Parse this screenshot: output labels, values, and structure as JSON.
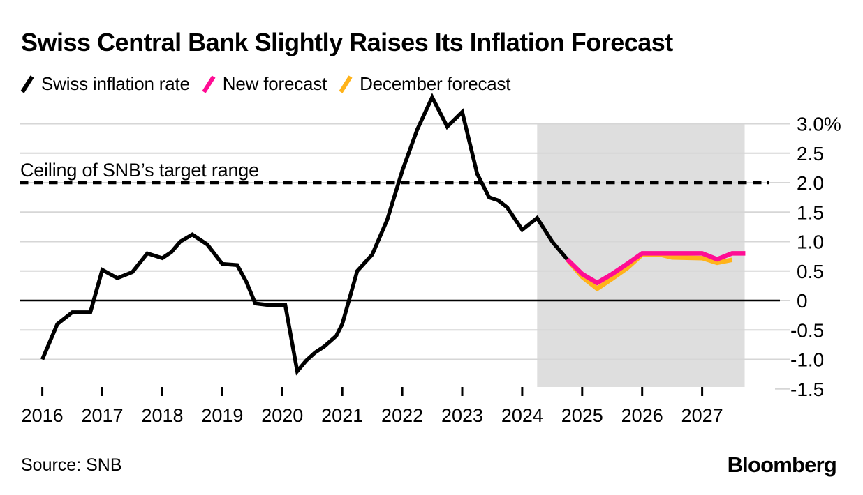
{
  "header": {
    "title": "Swiss Central Bank Slightly Raises Its Inflation Forecast"
  },
  "legend": {
    "items": [
      {
        "label": "Swiss inflation rate",
        "color": "#000000"
      },
      {
        "label": "New forecast",
        "color": "#ff0d94"
      },
      {
        "label": "December forecast",
        "color": "#ffb31a"
      }
    ]
  },
  "footer": {
    "source": "Source: SNB",
    "brand": "Bloomberg"
  },
  "chart_data": {
    "type": "line",
    "title": "Swiss Central Bank Slightly Raises Its Inflation Forecast",
    "x_axis": {
      "range": [
        2015.62,
        2028.46
      ],
      "ticks": [
        "2016",
        "2017",
        "2018",
        "2019",
        "2020",
        "2021",
        "2022",
        "2023",
        "2024",
        "2025",
        "2026",
        "2027"
      ]
    },
    "y_axis": {
      "unit": "%",
      "range": [
        -1.5,
        3.0
      ],
      "ticks": [
        {
          "v": 3.0,
          "label": "3.0%"
        },
        {
          "v": 2.5,
          "label": "2.5"
        },
        {
          "v": 2.0,
          "label": "2.0"
        },
        {
          "v": 1.5,
          "label": "1.5"
        },
        {
          "v": 1.0,
          "label": "1.0"
        },
        {
          "v": 0.5,
          "label": "0.5"
        },
        {
          "v": 0.0,
          "label": "0",
          "zero": true
        },
        {
          "v": -0.5,
          "label": "-0.5"
        },
        {
          "v": -1.0,
          "label": "-1.0"
        },
        {
          "v": -1.5,
          "label": "-1.5",
          "stub": true
        }
      ]
    },
    "target_line": {
      "value": 2.0,
      "label": "Ceiling of SNB’s target range",
      "style": "dashed"
    },
    "forecast_region": {
      "from": 2024.25,
      "to": 2027.71,
      "color": "#dedede"
    },
    "series": [
      {
        "name": "Swiss inflation rate",
        "color": "#000000",
        "width": 5.5,
        "points": [
          [
            2016.0,
            -1.0
          ],
          [
            2016.25,
            -0.4
          ],
          [
            2016.5,
            -0.2
          ],
          [
            2016.8,
            -0.2
          ],
          [
            2017.0,
            0.52
          ],
          [
            2017.25,
            0.38
          ],
          [
            2017.5,
            0.48
          ],
          [
            2017.75,
            0.8
          ],
          [
            2018.0,
            0.72
          ],
          [
            2018.15,
            0.82
          ],
          [
            2018.3,
            1.0
          ],
          [
            2018.5,
            1.12
          ],
          [
            2018.75,
            0.95
          ],
          [
            2019.0,
            0.62
          ],
          [
            2019.25,
            0.6
          ],
          [
            2019.4,
            0.32
          ],
          [
            2019.55,
            -0.05
          ],
          [
            2019.8,
            -0.08
          ],
          [
            2020.05,
            -0.08
          ],
          [
            2020.25,
            -1.2
          ],
          [
            2020.4,
            -1.02
          ],
          [
            2020.55,
            -0.88
          ],
          [
            2020.7,
            -0.78
          ],
          [
            2020.9,
            -0.6
          ],
          [
            2021.0,
            -0.4
          ],
          [
            2021.25,
            0.5
          ],
          [
            2021.5,
            0.78
          ],
          [
            2021.75,
            1.37
          ],
          [
            2022.0,
            2.2
          ],
          [
            2022.25,
            2.9
          ],
          [
            2022.5,
            3.45
          ],
          [
            2022.75,
            2.95
          ],
          [
            2023.0,
            3.2
          ],
          [
            2023.25,
            2.15
          ],
          [
            2023.45,
            1.75
          ],
          [
            2023.6,
            1.7
          ],
          [
            2023.75,
            1.58
          ],
          [
            2024.0,
            1.2
          ],
          [
            2024.25,
            1.4
          ],
          [
            2024.5,
            1.0
          ],
          [
            2024.75,
            0.7
          ]
        ]
      },
      {
        "name": "New forecast",
        "color": "#ff0d94",
        "width": 6.5,
        "points": [
          [
            2024.75,
            0.7
          ],
          [
            2025.0,
            0.45
          ],
          [
            2025.25,
            0.3
          ],
          [
            2025.5,
            0.45
          ],
          [
            2025.75,
            0.62
          ],
          [
            2026.0,
            0.8
          ],
          [
            2026.5,
            0.8
          ],
          [
            2027.0,
            0.8
          ],
          [
            2027.25,
            0.7
          ],
          [
            2027.5,
            0.8
          ],
          [
            2027.72,
            0.8
          ]
        ]
      },
      {
        "name": "December forecast",
        "color": "#ffb31a",
        "width": 6.5,
        "points": [
          [
            2024.75,
            0.7
          ],
          [
            2025.0,
            0.4
          ],
          [
            2025.25,
            0.2
          ],
          [
            2025.5,
            0.37
          ],
          [
            2025.75,
            0.55
          ],
          [
            2026.0,
            0.78
          ],
          [
            2026.3,
            0.78
          ],
          [
            2026.5,
            0.73
          ],
          [
            2027.0,
            0.72
          ],
          [
            2027.25,
            0.64
          ],
          [
            2027.5,
            0.69
          ]
        ]
      }
    ]
  }
}
